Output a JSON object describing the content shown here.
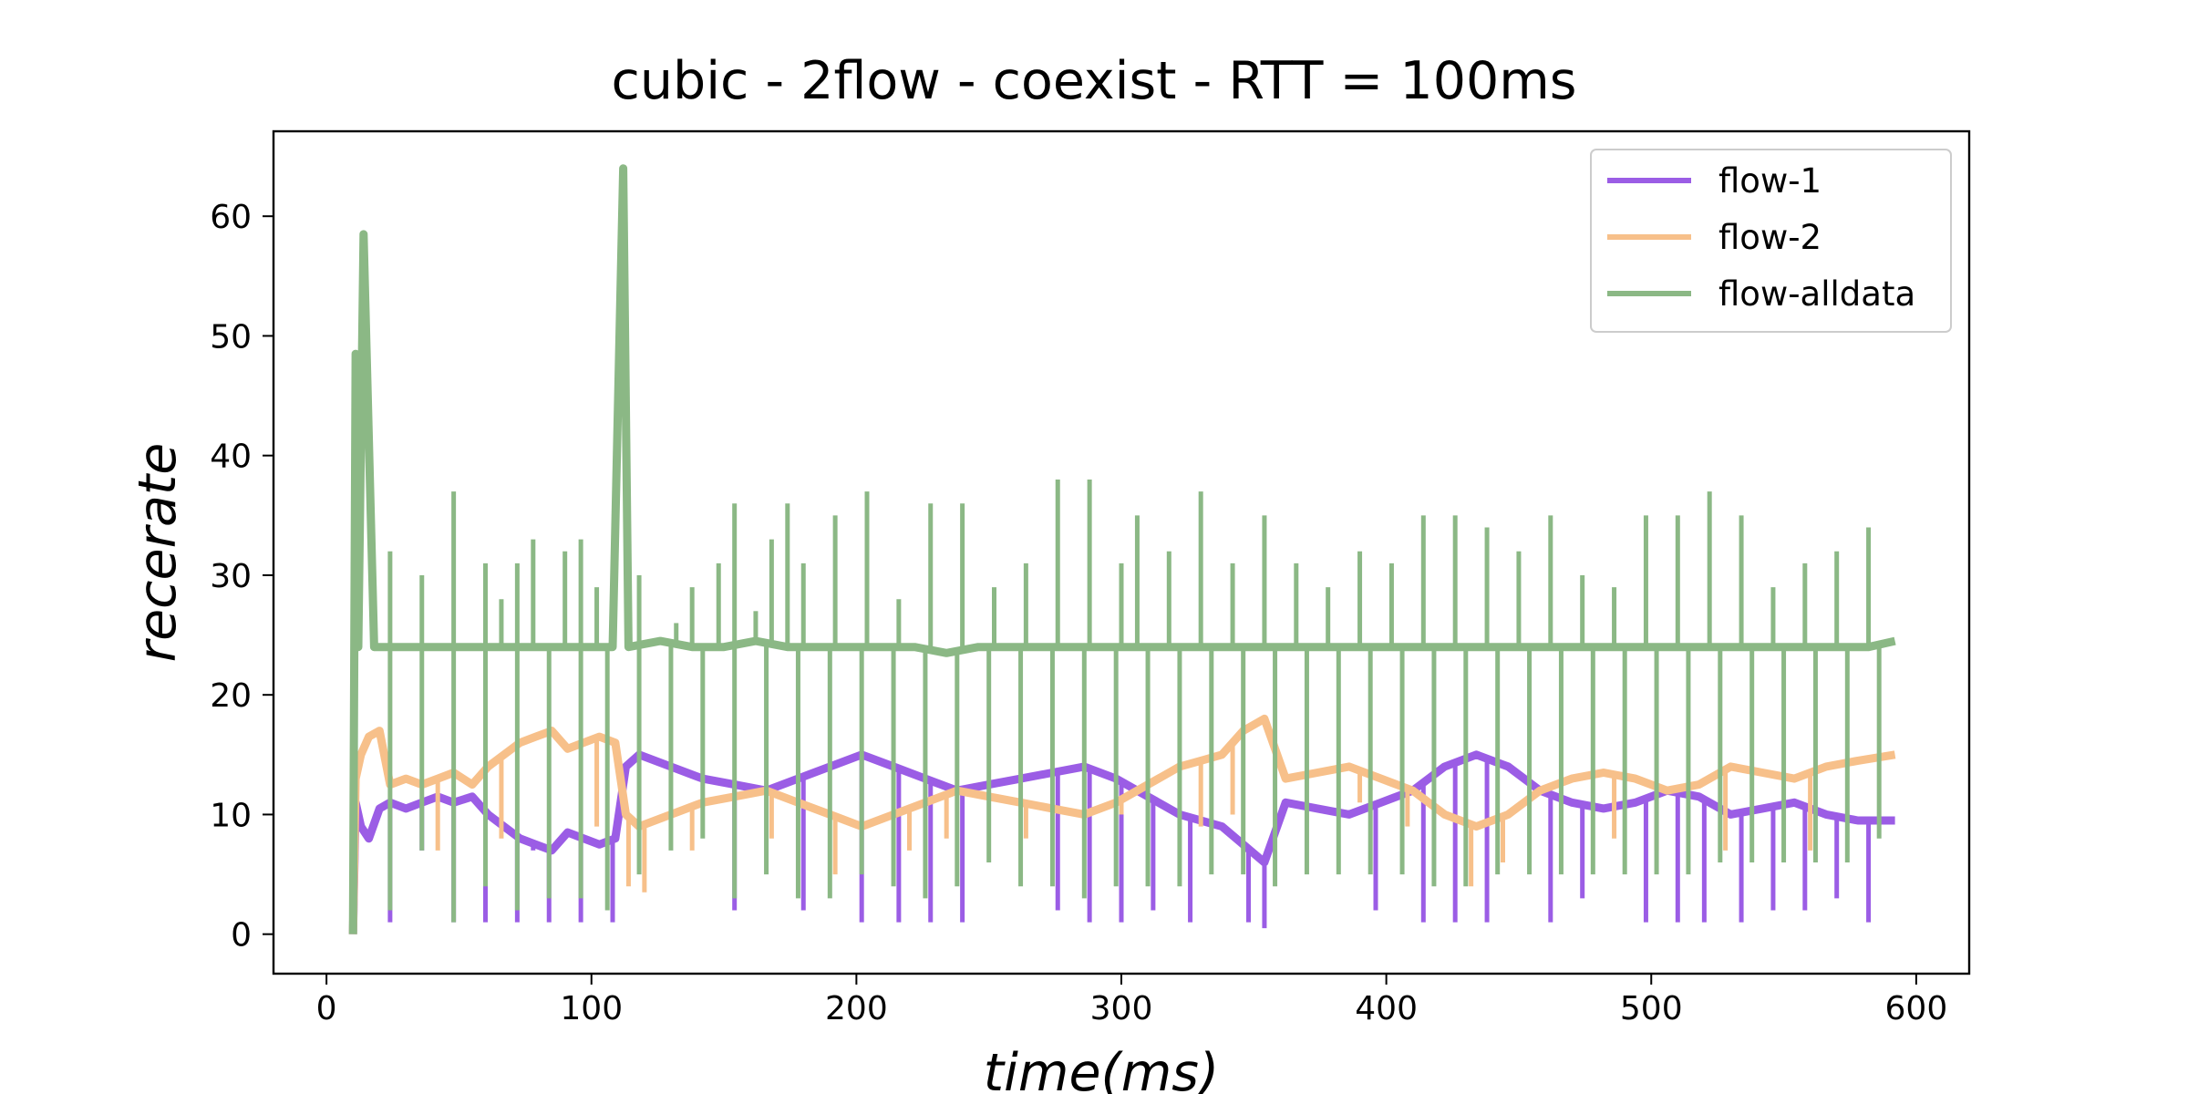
{
  "chart_data": {
    "type": "line",
    "title": "cubic - 2flow - coexist - RTT = 100ms",
    "xlabel": "time(ms)",
    "ylabel": "recerate",
    "xlim": [
      -20,
      620
    ],
    "ylim": [
      -3.3,
      67.1
    ],
    "xticks": [
      0,
      100,
      200,
      300,
      400,
      500,
      600
    ],
    "yticks": [
      0,
      10,
      20,
      30,
      40,
      50,
      60
    ],
    "grid": false,
    "legend_position": "top-right",
    "colors": {
      "flow-1": "#9b5de5",
      "flow-2": "#f7c08a",
      "flow-alldata": "#8bb885"
    },
    "series": [
      {
        "name": "flow-1",
        "color": "#9b5de5",
        "x": [
          10,
          11,
          13,
          16,
          20,
          24,
          30,
          36,
          42,
          48,
          55,
          61,
          67,
          73,
          79,
          85,
          91,
          97,
          103,
          109,
          113,
          118,
          130,
          142,
          154,
          166,
          178,
          190,
          202,
          214,
          226,
          238,
          250,
          262,
          274,
          286,
          298,
          306,
          314,
          322,
          330,
          338,
          346,
          354,
          362,
          374,
          386,
          398,
          410,
          422,
          434,
          446,
          458,
          470,
          482,
          494,
          506,
          518,
          530,
          542,
          554,
          566,
          578,
          592
        ],
        "y": [
          0,
          11,
          9,
          8,
          10.5,
          11,
          10.5,
          11,
          11.5,
          11,
          11.5,
          10,
          9,
          8,
          7.5,
          7,
          8.5,
          8,
          7.5,
          8,
          14,
          15,
          14,
          13,
          12.5,
          12,
          13,
          14,
          15,
          14,
          13,
          12,
          12.5,
          13,
          13.5,
          14,
          13,
          12,
          11,
          10,
          9.5,
          9,
          7.5,
          6,
          11,
          10.5,
          10,
          11,
          12,
          14,
          15,
          14,
          12,
          11,
          10.5,
          11,
          12,
          11.5,
          10,
          10.5,
          11,
          10,
          9.5,
          9.5
        ],
        "spikes": [
          [
            24,
            1
          ],
          [
            36,
            7
          ],
          [
            48,
            1
          ],
          [
            60,
            1
          ],
          [
            72,
            1
          ],
          [
            78,
            7
          ],
          [
            84,
            1
          ],
          [
            96,
            1
          ],
          [
            108,
            1
          ],
          [
            154,
            2
          ],
          [
            180,
            2
          ],
          [
            202,
            1
          ],
          [
            216,
            1
          ],
          [
            228,
            1
          ],
          [
            240,
            1
          ],
          [
            276,
            2
          ],
          [
            288,
            1
          ],
          [
            300,
            1
          ],
          [
            312,
            2
          ],
          [
            326,
            1
          ],
          [
            348,
            1
          ],
          [
            354,
            0.5
          ],
          [
            396,
            2
          ],
          [
            414,
            1
          ],
          [
            426,
            1
          ],
          [
            438,
            1
          ],
          [
            462,
            1
          ],
          [
            474,
            3
          ],
          [
            498,
            1
          ],
          [
            510,
            1
          ],
          [
            520,
            1
          ],
          [
            534,
            1
          ],
          [
            546,
            2
          ],
          [
            558,
            2
          ],
          [
            570,
            3
          ],
          [
            582,
            1
          ]
        ]
      },
      {
        "name": "flow-2",
        "color": "#f7c08a",
        "x": [
          10,
          11,
          13,
          16,
          20,
          24,
          30,
          36,
          42,
          48,
          55,
          61,
          67,
          73,
          79,
          85,
          91,
          97,
          103,
          109,
          113,
          118,
          130,
          142,
          154,
          166,
          178,
          190,
          202,
          214,
          226,
          238,
          250,
          262,
          274,
          286,
          298,
          306,
          314,
          322,
          330,
          338,
          346,
          354,
          362,
          374,
          386,
          398,
          410,
          422,
          434,
          446,
          458,
          470,
          482,
          494,
          506,
          518,
          530,
          542,
          554,
          566,
          578,
          592
        ],
        "y": [
          0,
          13,
          15,
          16.5,
          17,
          12.5,
          13,
          12.5,
          13,
          13.5,
          12.5,
          14,
          15,
          16,
          16.5,
          17,
          15.5,
          16,
          16.5,
          16,
          10,
          9,
          10,
          11,
          11.5,
          12,
          11,
          10,
          9,
          10,
          11,
          12,
          11.5,
          11,
          10.5,
          10,
          11,
          12,
          13,
          14,
          14.5,
          15,
          17,
          18,
          13,
          13.5,
          14,
          13,
          12,
          10,
          9,
          10,
          12,
          13,
          13.5,
          13,
          12,
          12.5,
          14,
          13.5,
          13,
          14,
          14.5,
          15
        ],
        "spikes": [
          [
            42,
            7
          ],
          [
            66,
            8
          ],
          [
            102,
            9
          ],
          [
            114,
            4
          ],
          [
            120,
            3.5
          ],
          [
            138,
            7
          ],
          [
            168,
            8
          ],
          [
            192,
            5
          ],
          [
            220,
            7
          ],
          [
            234,
            8
          ],
          [
            264,
            8
          ],
          [
            300,
            10
          ],
          [
            330,
            9
          ],
          [
            342,
            10
          ],
          [
            390,
            11
          ],
          [
            408,
            9
          ],
          [
            432,
            4
          ],
          [
            444,
            6
          ],
          [
            486,
            8
          ],
          [
            502,
            7
          ],
          [
            528,
            7
          ],
          [
            560,
            7
          ]
        ]
      },
      {
        "name": "flow-alldata",
        "color": "#8bb885",
        "x": [
          10,
          11,
          12,
          14,
          18,
          24,
          36,
          48,
          60,
          72,
          84,
          96,
          108,
          112,
          114,
          126,
          138,
          150,
          162,
          174,
          186,
          198,
          210,
          222,
          234,
          246,
          258,
          270,
          282,
          294,
          306,
          318,
          330,
          342,
          354,
          366,
          378,
          390,
          402,
          414,
          426,
          438,
          450,
          462,
          474,
          486,
          498,
          510,
          522,
          534,
          546,
          558,
          570,
          582,
          592
        ],
        "y": [
          0,
          48.5,
          24,
          58.5,
          24,
          24,
          24,
          24,
          24,
          24,
          24,
          24,
          24,
          64,
          24,
          24.5,
          24,
          24,
          24.5,
          24,
          24,
          24,
          24,
          24,
          23.5,
          24,
          24,
          24,
          24,
          24,
          24,
          24,
          24,
          24,
          24,
          24,
          24,
          24,
          24,
          24,
          24,
          24,
          24,
          24,
          24,
          24,
          24,
          24,
          24,
          24,
          24,
          24,
          24,
          24,
          24.5
        ],
        "spikes": [
          [
            24,
            32
          ],
          [
            36,
            30
          ],
          [
            48,
            37
          ],
          [
            60,
            31
          ],
          [
            66,
            28
          ],
          [
            72,
            31
          ],
          [
            78,
            33
          ],
          [
            90,
            32
          ],
          [
            96,
            33
          ],
          [
            102,
            29
          ],
          [
            118,
            30
          ],
          [
            132,
            26
          ],
          [
            138,
            29
          ],
          [
            148,
            31
          ],
          [
            154,
            36
          ],
          [
            162,
            27
          ],
          [
            168,
            33
          ],
          [
            174,
            36
          ],
          [
            180,
            31
          ],
          [
            192,
            35
          ],
          [
            204,
            37
          ],
          [
            216,
            28
          ],
          [
            228,
            36
          ],
          [
            240,
            36
          ],
          [
            252,
            29
          ],
          [
            264,
            31
          ],
          [
            276,
            38
          ],
          [
            288,
            38
          ],
          [
            300,
            31
          ],
          [
            306,
            35
          ],
          [
            318,
            32
          ],
          [
            330,
            37
          ],
          [
            342,
            31
          ],
          [
            354,
            35
          ],
          [
            366,
            31
          ],
          [
            378,
            29
          ],
          [
            390,
            32
          ],
          [
            402,
            31
          ],
          [
            414,
            35
          ],
          [
            426,
            35
          ],
          [
            438,
            34
          ],
          [
            450,
            32
          ],
          [
            462,
            35
          ],
          [
            474,
            30
          ],
          [
            486,
            29
          ],
          [
            498,
            35
          ],
          [
            510,
            35
          ],
          [
            522,
            37
          ],
          [
            534,
            35
          ],
          [
            546,
            29
          ],
          [
            558,
            31
          ],
          [
            570,
            32
          ],
          [
            582,
            34
          ]
        ],
        "dips": [
          [
            24,
            2
          ],
          [
            36,
            7
          ],
          [
            48,
            1
          ],
          [
            60,
            4
          ],
          [
            72,
            2
          ],
          [
            84,
            3
          ],
          [
            96,
            3
          ],
          [
            106,
            2
          ],
          [
            118,
            5
          ],
          [
            130,
            7
          ],
          [
            142,
            8
          ],
          [
            154,
            3
          ],
          [
            166,
            5
          ],
          [
            178,
            3
          ],
          [
            190,
            3
          ],
          [
            202,
            5
          ],
          [
            214,
            4
          ],
          [
            226,
            3
          ],
          [
            238,
            4
          ],
          [
            250,
            6
          ],
          [
            262,
            4
          ],
          [
            274,
            4
          ],
          [
            286,
            3
          ],
          [
            298,
            4
          ],
          [
            310,
            4
          ],
          [
            322,
            4
          ],
          [
            334,
            5
          ],
          [
            346,
            5
          ],
          [
            358,
            4
          ],
          [
            370,
            5
          ],
          [
            382,
            5
          ],
          [
            394,
            5
          ],
          [
            406,
            5
          ],
          [
            418,
            4
          ],
          [
            430,
            4
          ],
          [
            442,
            5
          ],
          [
            454,
            5
          ],
          [
            466,
            5
          ],
          [
            478,
            5
          ],
          [
            490,
            5
          ],
          [
            502,
            5
          ],
          [
            514,
            5
          ],
          [
            526,
            6
          ],
          [
            538,
            6
          ],
          [
            550,
            6
          ],
          [
            562,
            6
          ],
          [
            574,
            6
          ],
          [
            586,
            8
          ]
        ]
      }
    ]
  }
}
